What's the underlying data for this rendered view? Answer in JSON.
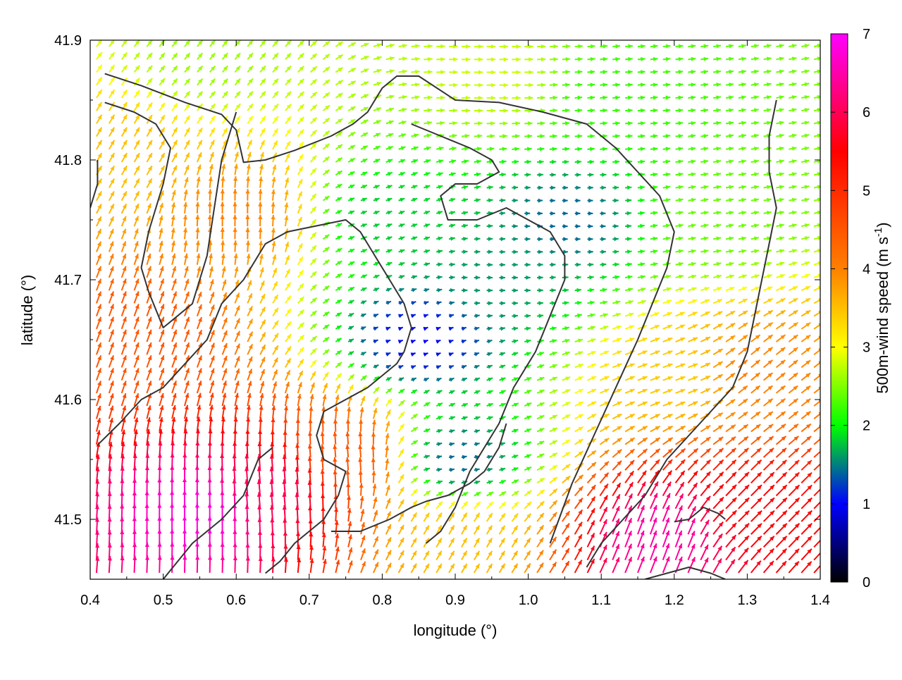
{
  "chart_data": {
    "type": "vector-field",
    "xlabel": "longitude (°)",
    "ylabel": "latitude (°)",
    "xlim": [
      0.4,
      1.4
    ],
    "ylim": [
      41.45,
      41.9
    ],
    "x_ticks": [
      "0.4",
      "0.5",
      "0.6",
      "0.7",
      "0.8",
      "0.9",
      "1.0",
      "1.1",
      "1.2",
      "1.3",
      "1.4"
    ],
    "y_ticks": [
      "41.5",
      "41.6",
      "41.7",
      "41.8",
      "41.9"
    ],
    "y_tick_values": [
      41.5,
      41.6,
      41.7,
      41.8,
      41.9
    ],
    "colorbar": {
      "label_prefix": "500m-wind speed (m s",
      "label_exponent": "-1",
      "label_suffix": ")",
      "min": 0,
      "max": 7,
      "ticks": [
        "0",
        "1",
        "2",
        "3",
        "4",
        "5",
        "6",
        "7"
      ],
      "palette": [
        "#000000",
        "#0000ff",
        "#00ff00",
        "#ffff00",
        "#ff8000",
        "#ff0000",
        "#ff00ff"
      ]
    },
    "wind_field": {
      "description_free": true,
      "lon_range": [
        0.4,
        1.4
      ],
      "lat_range": [
        41.45,
        41.9
      ],
      "regions": [
        {
          "lon": 0.55,
          "lat": 41.5,
          "speed": 6.8,
          "direction_deg": 90
        },
        {
          "lon": 0.65,
          "lat": 41.52,
          "speed": 6.0,
          "direction_deg": 95
        },
        {
          "lon": 0.47,
          "lat": 41.65,
          "speed": 4.5,
          "direction_deg": 70
        },
        {
          "lon": 0.45,
          "lat": 41.8,
          "speed": 3.5,
          "direction_deg": 60
        },
        {
          "lon": 0.6,
          "lat": 41.75,
          "speed": 4.0,
          "direction_deg": 90
        },
        {
          "lon": 0.75,
          "lat": 41.55,
          "speed": 4.5,
          "direction_deg": 95
        },
        {
          "lon": 0.85,
          "lat": 41.65,
          "speed": 1.0,
          "direction_deg": 20
        },
        {
          "lon": 0.8,
          "lat": 41.75,
          "speed": 1.8,
          "direction_deg": 20
        },
        {
          "lon": 0.95,
          "lat": 41.7,
          "speed": 1.6,
          "direction_deg": 0
        },
        {
          "lon": 1.05,
          "lat": 41.75,
          "speed": 1.4,
          "direction_deg": 0
        },
        {
          "lon": 1.1,
          "lat": 41.85,
          "speed": 2.2,
          "direction_deg": 5
        },
        {
          "lon": 1.25,
          "lat": 41.75,
          "speed": 2.4,
          "direction_deg": 10
        },
        {
          "lon": 1.3,
          "lat": 41.62,
          "speed": 4.0,
          "direction_deg": 40
        },
        {
          "lon": 1.3,
          "lat": 41.5,
          "speed": 5.5,
          "direction_deg": 45
        },
        {
          "lon": 1.18,
          "lat": 41.48,
          "speed": 6.5,
          "direction_deg": 70
        },
        {
          "lon": 0.9,
          "lat": 41.55,
          "speed": 1.4,
          "direction_deg": 10
        },
        {
          "lon": 0.9,
          "lat": 41.48,
          "speed": 3.5,
          "direction_deg": 60
        },
        {
          "lon": 0.55,
          "lat": 41.88,
          "speed": 2.6,
          "direction_deg": 50
        },
        {
          "lon": 0.95,
          "lat": 41.87,
          "speed": 2.8,
          "direction_deg": 0
        },
        {
          "lon": 1.2,
          "lat": 41.62,
          "speed": 3.4,
          "direction_deg": 20
        }
      ]
    },
    "contours": [
      [
        [
          0.42,
          41.872
        ],
        [
          0.47,
          41.862
        ],
        [
          0.53,
          41.848
        ],
        [
          0.58,
          41.838
        ],
        [
          0.6,
          41.825
        ],
        [
          0.61,
          41.798
        ],
        [
          0.64,
          41.8
        ],
        [
          0.68,
          41.808
        ],
        [
          0.73,
          41.82
        ],
        [
          0.76,
          41.83
        ],
        [
          0.78,
          41.84
        ],
        [
          0.8,
          41.86
        ],
        [
          0.82,
          41.87
        ],
        [
          0.85,
          41.87
        ],
        [
          0.9,
          41.85
        ],
        [
          0.96,
          41.848
        ],
        [
          1.02,
          41.84
        ],
        [
          1.08,
          41.83
        ],
        [
          1.12,
          41.81
        ],
        [
          1.15,
          41.79
        ],
        [
          1.18,
          41.77
        ],
        [
          1.2,
          41.74
        ],
        [
          1.19,
          41.71
        ],
        [
          1.17,
          41.68
        ],
        [
          1.15,
          41.65
        ],
        [
          1.12,
          41.61
        ],
        [
          1.09,
          41.57
        ],
        [
          1.06,
          41.53
        ],
        [
          1.03,
          41.48
        ]
      ],
      [
        [
          0.42,
          41.848
        ],
        [
          0.46,
          41.84
        ],
        [
          0.49,
          41.83
        ],
        [
          0.51,
          41.81
        ],
        [
          0.5,
          41.78
        ],
        [
          0.48,
          41.74
        ],
        [
          0.47,
          41.71
        ],
        [
          0.48,
          41.69
        ],
        [
          0.5,
          41.66
        ],
        [
          0.54,
          41.68
        ],
        [
          0.56,
          41.72
        ],
        [
          0.57,
          41.76
        ],
        [
          0.58,
          41.8
        ],
        [
          0.59,
          41.82
        ],
        [
          0.6,
          41.84
        ]
      ],
      [
        [
          0.41,
          41.562
        ],
        [
          0.44,
          41.58
        ],
        [
          0.47,
          41.6
        ],
        [
          0.5,
          41.61
        ],
        [
          0.53,
          41.63
        ],
        [
          0.56,
          41.65
        ],
        [
          0.58,
          41.68
        ],
        [
          0.61,
          41.7
        ],
        [
          0.64,
          41.73
        ],
        [
          0.67,
          41.74
        ],
        [
          0.71,
          41.745
        ],
        [
          0.75,
          41.75
        ],
        [
          0.77,
          41.74
        ],
        [
          0.79,
          41.72
        ],
        [
          0.81,
          41.7
        ],
        [
          0.83,
          41.68
        ],
        [
          0.84,
          41.66
        ],
        [
          0.83,
          41.64
        ],
        [
          0.82,
          41.63
        ],
        [
          0.8,
          41.62
        ],
        [
          0.78,
          41.61
        ],
        [
          0.75,
          41.6
        ],
        [
          0.72,
          41.59
        ],
        [
          0.71,
          41.57
        ],
        [
          0.72,
          41.55
        ],
        [
          0.75,
          41.54
        ],
        [
          0.74,
          41.52
        ],
        [
          0.72,
          41.5
        ],
        [
          0.7,
          41.49
        ],
        [
          0.68,
          41.48
        ],
        [
          0.66,
          41.465
        ],
        [
          0.64,
          41.455
        ]
      ],
      [
        [
          0.84,
          41.83
        ],
        [
          0.88,
          41.82
        ],
        [
          0.92,
          41.81
        ],
        [
          0.95,
          41.8
        ],
        [
          0.96,
          41.79
        ],
        [
          0.93,
          41.78
        ],
        [
          0.9,
          41.78
        ],
        [
          0.88,
          41.77
        ],
        [
          0.89,
          41.75
        ],
        [
          0.93,
          41.75
        ],
        [
          0.97,
          41.76
        ],
        [
          1.0,
          41.75
        ],
        [
          1.03,
          41.74
        ],
        [
          1.05,
          41.72
        ],
        [
          1.05,
          41.7
        ],
        [
          1.03,
          41.67
        ],
        [
          1.01,
          41.64
        ],
        [
          0.98,
          41.61
        ],
        [
          0.96,
          41.58
        ],
        [
          0.94,
          41.56
        ],
        [
          0.92,
          41.54
        ],
        [
          0.9,
          41.51
        ],
        [
          0.88,
          41.49
        ],
        [
          0.86,
          41.48
        ]
      ],
      [
        [
          0.73,
          41.49
        ],
        [
          0.77,
          41.49
        ],
        [
          0.81,
          41.5
        ],
        [
          0.84,
          41.51
        ],
        [
          0.86,
          41.515
        ],
        [
          0.89,
          41.52
        ],
        [
          0.92,
          41.53
        ],
        [
          0.94,
          41.54
        ],
        [
          0.96,
          41.56
        ],
        [
          0.97,
          41.58
        ]
      ],
      [
        [
          1.34,
          41.85
        ],
        [
          1.33,
          41.82
        ],
        [
          1.33,
          41.79
        ],
        [
          1.34,
          41.76
        ],
        [
          1.33,
          41.73
        ],
        [
          1.32,
          41.7
        ],
        [
          1.31,
          41.67
        ],
        [
          1.3,
          41.64
        ],
        [
          1.28,
          41.61
        ],
        [
          1.25,
          41.59
        ],
        [
          1.22,
          41.57
        ],
        [
          1.19,
          41.55
        ],
        [
          1.16,
          41.52
        ],
        [
          1.13,
          41.5
        ],
        [
          1.1,
          41.48
        ],
        [
          1.08,
          41.46
        ]
      ],
      [
        [
          1.16,
          41.45
        ],
        [
          1.19,
          41.455
        ],
        [
          1.22,
          41.46
        ],
        [
          1.25,
          41.455
        ],
        [
          1.27,
          41.45
        ]
      ],
      [
        [
          1.2,
          41.498
        ],
        [
          1.22,
          41.5
        ],
        [
          1.24,
          41.51
        ],
        [
          1.26,
          41.505
        ],
        [
          1.27,
          41.5
        ]
      ],
      [
        [
          0.5,
          41.45
        ],
        [
          0.54,
          41.48
        ],
        [
          0.58,
          41.5
        ],
        [
          0.61,
          41.52
        ],
        [
          0.63,
          41.55
        ],
        [
          0.65,
          41.56
        ]
      ],
      [
        [
          0.4,
          41.76
        ],
        [
          0.41,
          41.78
        ],
        [
          0.41,
          41.8
        ]
      ]
    ]
  }
}
